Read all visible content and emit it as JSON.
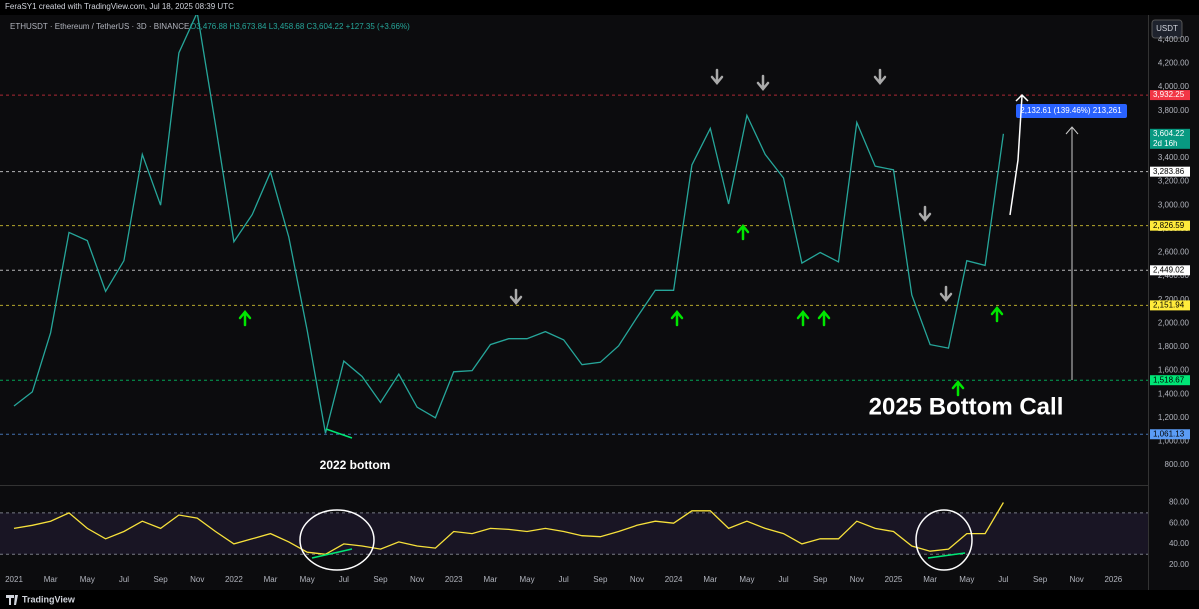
{
  "header": {
    "credit": "FeraSY1 created with TradingView.com, Jul 18, 2025 08:39 UTC",
    "symbol": "ETHUSDT · Ethereum / TetherUS · 3D · BINANCE",
    "ohlc": "O3,476.88 H3,673.84 L3,458.68 C3,604.22 +127.35 (+3.66%)",
    "currency": "USDT"
  },
  "annotations": {
    "bottom_2022": "2022 bottom",
    "bottom_call": "2025 Bottom Call",
    "measure": "2,132.61 (139.46%) 213,261",
    "countdown": "2d 16h"
  },
  "footer": "TradingView",
  "chart_data": [
    {
      "type": "line",
      "log_scale": false,
      "grid": false,
      "xlim": [
        "2021-01",
        "2026-03"
      ],
      "xticks": [
        {
          "value": "2021-01",
          "label": "2021"
        },
        {
          "value": "2021-03",
          "label": "Mar"
        },
        {
          "value": "2021-05",
          "label": "May"
        },
        {
          "value": "2021-07",
          "label": "Jul"
        },
        {
          "value": "2021-09",
          "label": "Sep"
        },
        {
          "value": "2021-11",
          "label": "Nov"
        },
        {
          "value": "2022-01",
          "label": "2022"
        },
        {
          "value": "2022-03",
          "label": "Mar"
        },
        {
          "value": "2022-05",
          "label": "May"
        },
        {
          "value": "2022-07",
          "label": "Jul"
        },
        {
          "value": "2022-09",
          "label": "Sep"
        },
        {
          "value": "2022-11",
          "label": "Nov"
        },
        {
          "value": "2023-01",
          "label": "2023"
        },
        {
          "value": "2023-03",
          "label": "Mar"
        },
        {
          "value": "2023-05",
          "label": "May"
        },
        {
          "value": "2023-07",
          "label": "Jul"
        },
        {
          "value": "2023-09",
          "label": "Sep"
        },
        {
          "value": "2023-11",
          "label": "Nov"
        },
        {
          "value": "2024-01",
          "label": "2024"
        },
        {
          "value": "2024-03",
          "label": "Mar"
        },
        {
          "value": "2024-05",
          "label": "May"
        },
        {
          "value": "2024-07",
          "label": "Jul"
        },
        {
          "value": "2024-09",
          "label": "Sep"
        },
        {
          "value": "2024-11",
          "label": "Nov"
        },
        {
          "value": "2025-01",
          "label": "2025"
        },
        {
          "value": "2025-03",
          "label": "Mar"
        },
        {
          "value": "2025-05",
          "label": "May"
        },
        {
          "value": "2025-07",
          "label": "Jul"
        },
        {
          "value": "2025-09",
          "label": "Sep"
        },
        {
          "value": "2025-11",
          "label": "Nov"
        },
        {
          "value": "2026-01",
          "label": "2026"
        }
      ],
      "ylim": [
        640,
        4610
      ],
      "yticks": [
        {
          "value": 800,
          "label": "800.00"
        },
        {
          "value": 1000,
          "label": "1,000.00"
        },
        {
          "value": 1200,
          "label": "1,200.00"
        },
        {
          "value": 1400,
          "label": "1,400.00"
        },
        {
          "value": 1600,
          "label": "1,600.00"
        },
        {
          "value": 1800,
          "label": "1,800.00"
        },
        {
          "value": 2000,
          "label": "2,000.00"
        },
        {
          "value": 2200,
          "label": "2,200.00"
        },
        {
          "value": 2400,
          "label": "2,400.00"
        },
        {
          "value": 2600,
          "label": "2,600.00"
        },
        {
          "value": 2800,
          "label": "2,800.00"
        },
        {
          "value": 3000,
          "label": "3,000.00"
        },
        {
          "value": 3200,
          "label": "3,200.00"
        },
        {
          "value": 3400,
          "label": "3,400.00"
        },
        {
          "value": 3600,
          "label": "3,600.00"
        },
        {
          "value": 3800,
          "label": "3,800.00"
        },
        {
          "value": 4000,
          "label": "4,000.00"
        },
        {
          "value": 4200,
          "label": "4,200.00"
        },
        {
          "value": 4400,
          "label": "4,400.00"
        }
      ],
      "levels": [
        {
          "value": 3932.25,
          "label": "3,932.25",
          "color": "#f23645",
          "text_color": "#ffffff"
        },
        {
          "value": 3283.86,
          "label": "3,283.86",
          "color": "#ffffff",
          "text_color": "#000000"
        },
        {
          "value": 2826.59,
          "label": "2,826.59",
          "color": "#ffeb3b",
          "text_color": "#000000"
        },
        {
          "value": 2449.02,
          "label": "2,449.02",
          "color": "#ffffff",
          "text_color": "#000000"
        },
        {
          "value": 2151.94,
          "label": "2,151.94",
          "color": "#ffeb3b",
          "text_color": "#000000"
        },
        {
          "value": 1518.67,
          "label": "1,518.67",
          "color": "#00e676",
          "text_color": "#000000"
        },
        {
          "value": 1061.13,
          "label": "1,061.13",
          "color": "#5b9cf6",
          "text_color": "#000000"
        }
      ],
      "last_price": {
        "value": 3604.22,
        "label": "3,604.22",
        "color": "#089981"
      },
      "x": [
        "2021-01",
        "2021-02",
        "2021-03",
        "2021-04",
        "2021-05",
        "2021-06",
        "2021-07",
        "2021-08",
        "2021-09",
        "2021-10",
        "2021-11",
        "2021-12",
        "2022-01",
        "2022-02",
        "2022-03",
        "2022-04",
        "2022-05",
        "2022-06",
        "2022-07",
        "2022-08",
        "2022-09",
        "2022-10",
        "2022-11",
        "2022-12",
        "2023-01",
        "2023-02",
        "2023-03",
        "2023-04",
        "2023-05",
        "2023-06",
        "2023-07",
        "2023-08",
        "2023-09",
        "2023-10",
        "2023-11",
        "2023-12",
        "2024-01",
        "2024-02",
        "2024-03",
        "2024-04",
        "2024-05",
        "2024-06",
        "2024-07",
        "2024-08",
        "2024-09",
        "2024-10",
        "2024-11",
        "2024-12",
        "2025-01",
        "2025-02",
        "2025-03",
        "2025-04",
        "2025-05",
        "2025-06",
        "2025-07"
      ],
      "series": [
        {
          "name": "ETHUSDT",
          "color": "#26a69a",
          "values": [
            1300,
            1420,
            1920,
            2770,
            2700,
            2270,
            2530,
            3430,
            3000,
            4290,
            4630,
            3680,
            2690,
            2920,
            3280,
            2730,
            1940,
            1070,
            1680,
            1550,
            1330,
            1570,
            1290,
            1200,
            1590,
            1600,
            1820,
            1870,
            1870,
            1930,
            1860,
            1650,
            1670,
            1810,
            2050,
            2280,
            2280,
            3340,
            3650,
            3010,
            3760,
            3430,
            3230,
            2510,
            2600,
            2520,
            3700,
            3330,
            3300,
            2240,
            1820,
            1790,
            2530,
            2490,
            3604.22
          ]
        }
      ]
    },
    {
      "type": "line",
      "ylim": [
        10,
        95
      ],
      "yticks": [
        {
          "value": 20,
          "label": "20.00"
        },
        {
          "value": 40,
          "label": "40.00"
        },
        {
          "value": 60,
          "label": "60.00"
        },
        {
          "value": 80,
          "label": "80.00"
        }
      ],
      "band": [
        30,
        70
      ],
      "series": [
        {
          "name": "RSI",
          "color": "#f7e13b",
          "values": [
            55,
            58,
            62,
            70,
            55,
            45,
            52,
            62,
            55,
            68,
            65,
            52,
            40,
            45,
            50,
            42,
            32,
            30,
            40,
            38,
            35,
            42,
            38,
            36,
            52,
            50,
            55,
            54,
            52,
            55,
            52,
            48,
            47,
            52,
            58,
            62,
            60,
            72,
            72,
            55,
            62,
            55,
            50,
            40,
            45,
            45,
            62,
            55,
            52,
            38,
            33,
            35,
            50,
            50,
            80
          ]
        }
      ]
    }
  ]
}
